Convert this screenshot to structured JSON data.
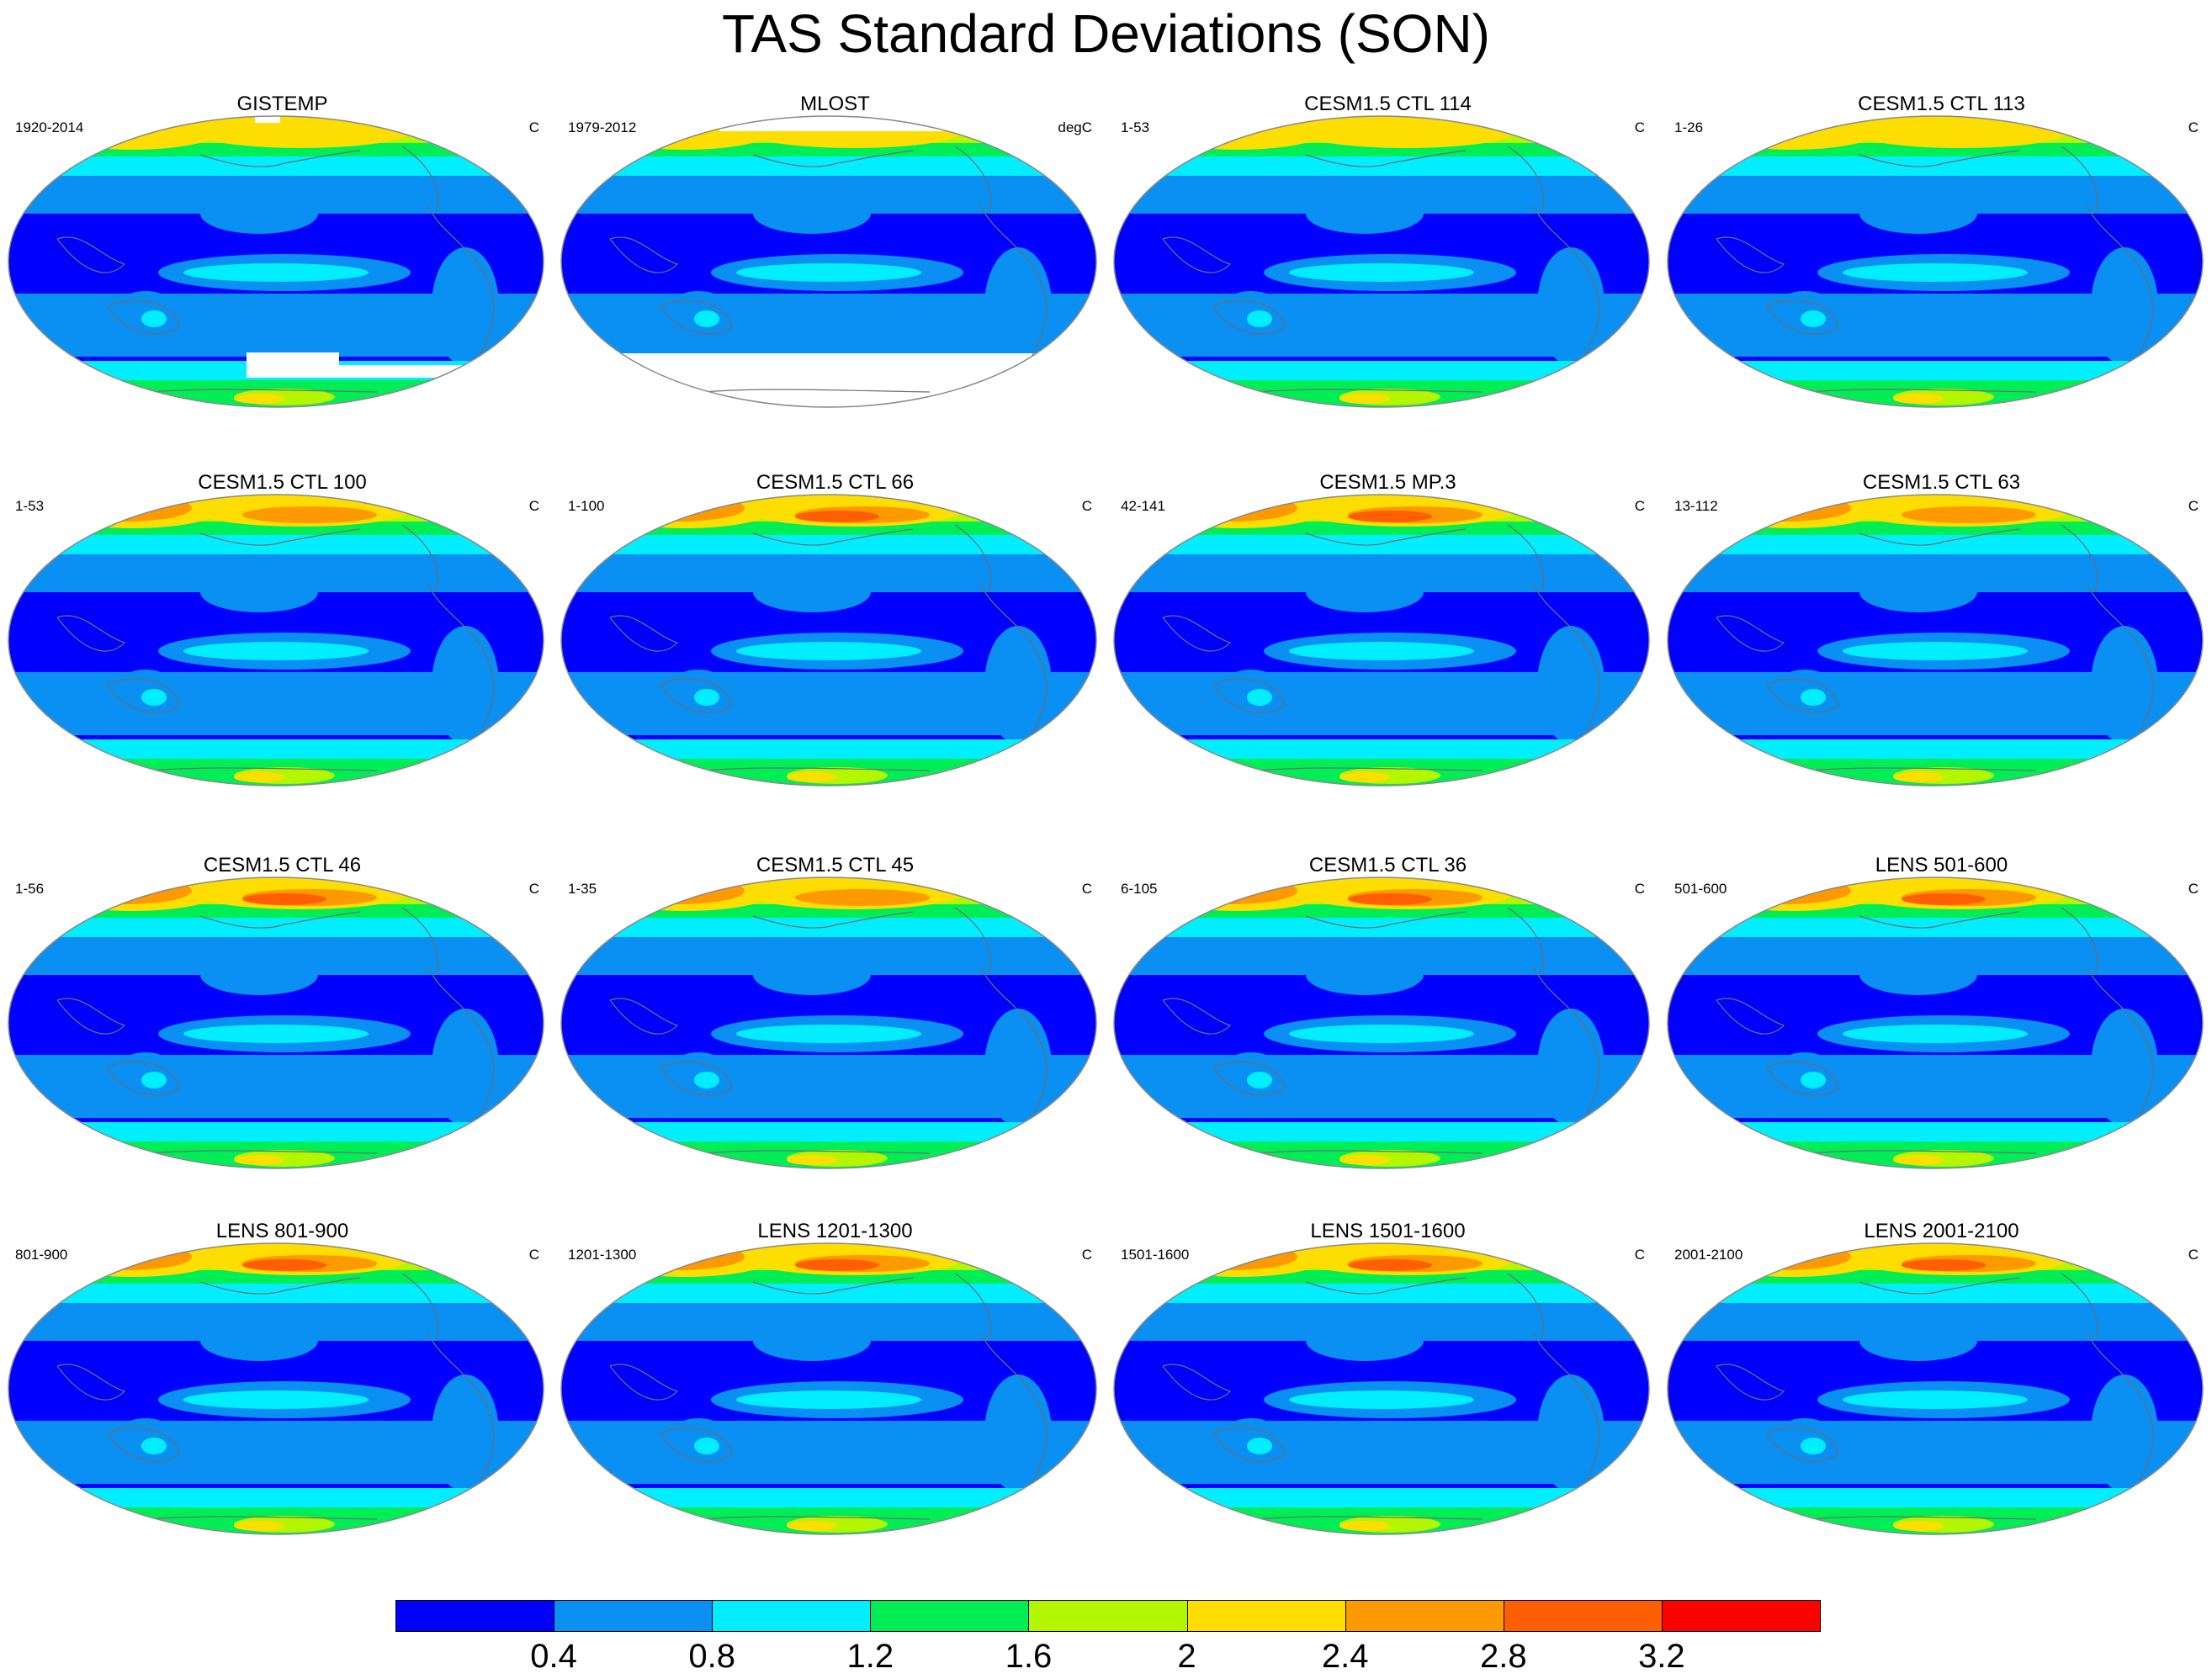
{
  "title": "TAS Standard Deviations (SON)",
  "palette": [
    "#0000ff",
    "#0a8ff2",
    "#00eeff",
    "#00ee55",
    "#b4f500",
    "#fedd00",
    "#ff9900",
    "#ff5f00",
    "#ff0000"
  ],
  "outline_color": "#8a8a8a",
  "coast_color": "#6f6f6f",
  "missing_color": "#ffffff",
  "panels": [
    {
      "title": "GISTEMP",
      "period": "1920-2014",
      "units": "C",
      "style": "obs1"
    },
    {
      "title": "MLOST",
      "period": "1979-2012",
      "units": "degC",
      "style": "obs2"
    },
    {
      "title": "CESM1.5 CTL 114",
      "period": "1-53",
      "units": "C",
      "style": "m1"
    },
    {
      "title": "CESM1.5 CTL 113",
      "period": "1-26",
      "units": "C",
      "style": "m1"
    },
    {
      "title": "CESM1.5 CTL 100",
      "period": "1-53",
      "units": "C",
      "style": "m2"
    },
    {
      "title": "CESM1.5 CTL 66",
      "period": "1-100",
      "units": "C",
      "style": "m3"
    },
    {
      "title": "CESM1.5 MP.3",
      "period": "42-141",
      "units": "C",
      "style": "m3"
    },
    {
      "title": "CESM1.5 CTL 63",
      "period": "13-112",
      "units": "C",
      "style": "m2"
    },
    {
      "title": "CESM1.5 CTL 46",
      "period": "1-56",
      "units": "C",
      "style": "m3"
    },
    {
      "title": "CESM1.5 CTL 45",
      "period": "1-35",
      "units": "C",
      "style": "m2"
    },
    {
      "title": "CESM1.5 CTL 36",
      "period": "6-105",
      "units": "C",
      "style": "m3"
    },
    {
      "title": "LENS 501-600",
      "period": "501-600",
      "units": "C",
      "style": "m3"
    },
    {
      "title": "LENS 801-900",
      "period": "801-900",
      "units": "C",
      "style": "m3"
    },
    {
      "title": "LENS 1201-1300",
      "period": "1201-1300",
      "units": "C",
      "style": "m3"
    },
    {
      "title": "LENS 1501-1600",
      "period": "1501-1600",
      "units": "C",
      "style": "m3"
    },
    {
      "title": "LENS 2001-2100",
      "period": "2001-2100",
      "units": "C",
      "style": "m3"
    }
  ],
  "colorbar": {
    "labels": [
      "0.4",
      "0.8",
      "1.2",
      "1.6",
      "2",
      "2.4",
      "2.8",
      "3.2"
    ],
    "levels": [
      0.4,
      0.8,
      1.2,
      1.6,
      2.0,
      2.4,
      2.8,
      3.2
    ]
  }
}
